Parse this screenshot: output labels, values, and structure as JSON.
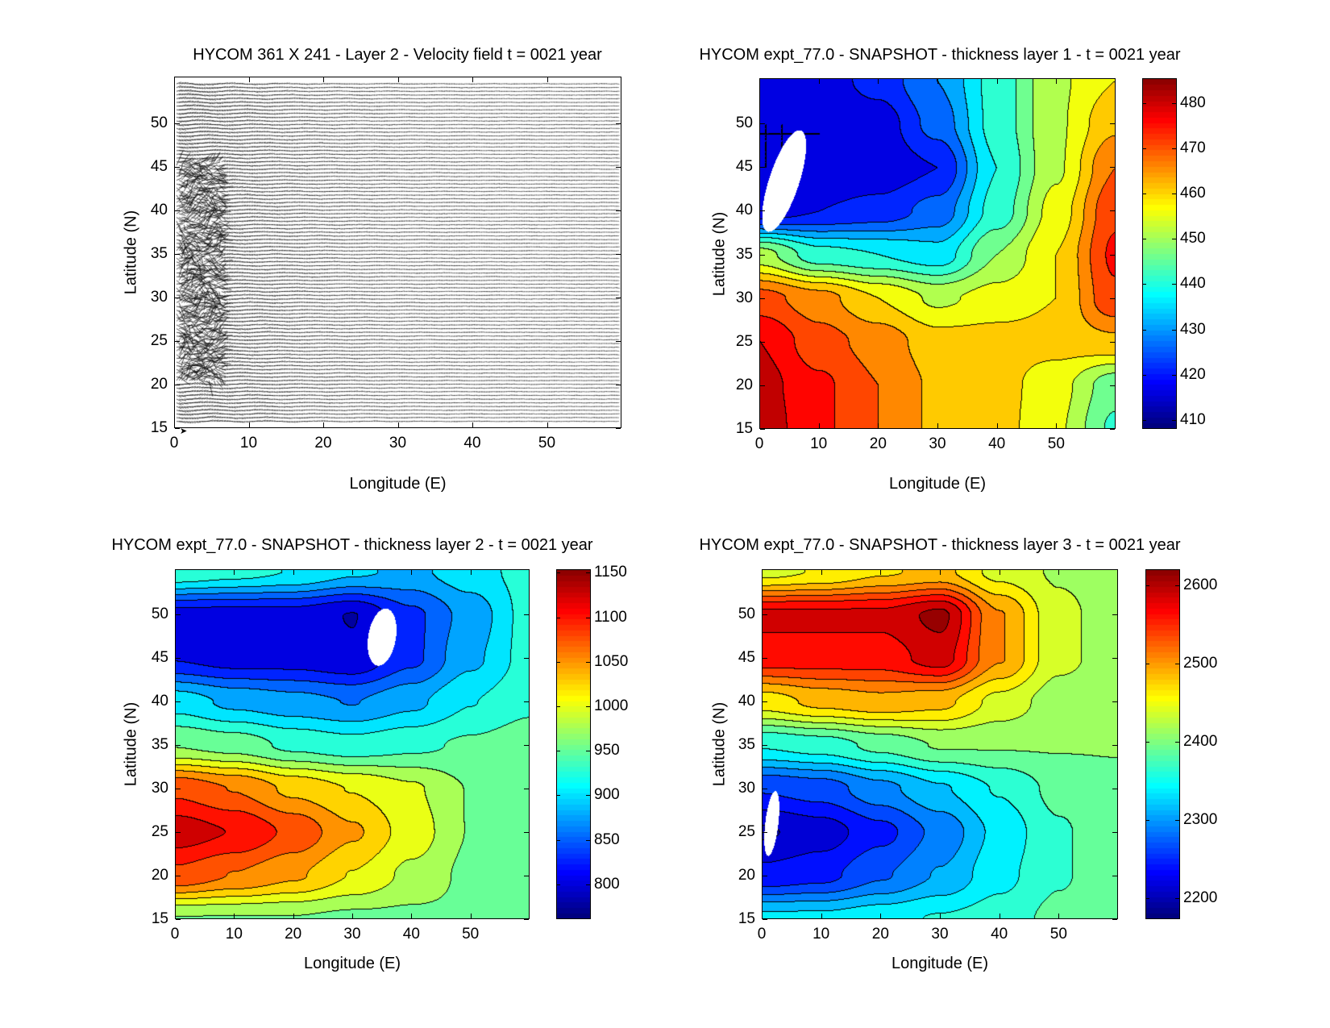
{
  "chart_data": [
    {
      "type": "quiver",
      "title": "HYCOM 361 X 241 - Layer 2 - Velocity field  t = 0021 year",
      "xlabel": "Longitude (E)",
      "ylabel": "Latitude (N)",
      "xlim": [
        0,
        60
      ],
      "ylim": [
        15,
        55.4
      ],
      "xticks": [
        "0",
        "10",
        "20",
        "30",
        "40",
        "50"
      ],
      "yticks": [
        "15",
        "20",
        "25",
        "30",
        "35",
        "40",
        "45",
        "50"
      ],
      "grid_size": "361 X 241"
    },
    {
      "type": "heatmap",
      "subtype": "filled-contour",
      "title": "HYCOM expt_77.0 - SNAPSHOT - thickness layer 1 - t = 0021 year",
      "xlabel": "Longitude (E)",
      "ylabel": "Latitude (N)",
      "xlim": [
        0,
        60
      ],
      "ylim": [
        15,
        55.2
      ],
      "xticks": [
        "0",
        "10",
        "20",
        "30",
        "40",
        "50"
      ],
      "yticks": [
        "15",
        "20",
        "25",
        "30",
        "35",
        "40",
        "45",
        "50"
      ],
      "colorbar": {
        "range": [
          408,
          485.5
        ],
        "ticks": [
          "410",
          "420",
          "430",
          "440",
          "450",
          "460",
          "470",
          "480"
        ],
        "colormap": "jet"
      },
      "contour_step": 5,
      "lon": [
        0,
        10,
        20,
        30,
        40,
        50,
        60
      ],
      "lat": [
        55,
        50,
        45,
        40,
        35,
        30,
        25,
        20,
        15
      ],
      "values": [
        [
          415,
          415,
          420,
          428,
          440,
          452,
          458
        ],
        [
          413,
          413,
          415,
          425,
          440,
          452,
          462
        ],
        [
          413,
          413,
          414,
          418,
          438,
          452,
          468
        ],
        [
          415,
          418,
          420,
          425,
          440,
          455,
          472
        ],
        [
          450,
          440,
          438,
          435,
          448,
          458,
          474
        ],
        [
          470,
          465,
          458,
          452,
          455,
          458,
          472
        ],
        [
          478,
          470,
          466,
          460,
          460,
          460,
          462
        ],
        [
          480,
          474,
          468,
          462,
          460,
          455,
          445
        ],
        [
          481,
          474,
          468,
          462,
          460,
          454,
          442
        ]
      ],
      "masked_region": {
        "lon": 4,
        "lat": 43.5,
        "half_lon": 2.4,
        "half_lat": 6.5,
        "tilt_deg": 28
      }
    },
    {
      "type": "heatmap",
      "subtype": "filled-contour",
      "title": "HYCOM expt_77.0 - SNAPSHOT - thickness layer 2 - t = 0021 year",
      "xlabel": "Longitude (E)",
      "ylabel": "Latitude (N)",
      "xlim": [
        0,
        60
      ],
      "ylim": [
        15,
        55.2
      ],
      "xticks": [
        "0",
        "10",
        "20",
        "30",
        "40",
        "50"
      ],
      "yticks": [
        "15",
        "20",
        "25",
        "30",
        "35",
        "40",
        "45",
        "50"
      ],
      "colorbar": {
        "range": [
          761,
          1154
        ],
        "ticks": [
          "800",
          "850",
          "900",
          "950",
          "1000",
          "1050",
          "1100",
          "1150"
        ],
        "colormap": "jet"
      },
      "contour_step": 25,
      "lon": [
        0,
        10,
        20,
        30,
        40,
        50,
        60
      ],
      "lat": [
        55,
        50,
        45,
        40,
        35,
        30,
        25,
        20,
        15
      ],
      "values": [
        [
          930,
          920,
          910,
          890,
          880,
          900,
          920
        ],
        [
          800,
          800,
          800,
          785,
          830,
          870,
          920
        ],
        [
          810,
          800,
          800,
          790,
          830,
          880,
          920
        ],
        [
          900,
          880,
          870,
          860,
          880,
          910,
          930
        ],
        [
          960,
          950,
          930,
          920,
          930,
          940,
          950
        ],
        [
          1080,
          1060,
          1030,
          1010,
          990,
          960,
          950
        ],
        [
          1125,
          1110,
          1080,
          1040,
          1000,
          960,
          950
        ],
        [
          1080,
          1060,
          1040,
          1010,
          980,
          955,
          950
        ],
        [
          960,
          960,
          960,
          955,
          955,
          955,
          955
        ]
      ],
      "masked_region": {
        "lon": 35,
        "lat": 47.5,
        "half_lon": 2.3,
        "half_lat": 3.4,
        "tilt_deg": 20
      }
    },
    {
      "type": "heatmap",
      "subtype": "filled-contour",
      "title": "HYCOM expt_77.0 - SNAPSHOT - thickness layer 3 - t = 0021 year",
      "xlabel": "Longitude (E)",
      "ylabel": "Latitude (N)",
      "xlim": [
        0,
        60
      ],
      "ylim": [
        15,
        55.2
      ],
      "xticks": [
        "0",
        "10",
        "20",
        "30",
        "40",
        "50"
      ],
      "yticks": [
        "15",
        "20",
        "25",
        "30",
        "35",
        "40",
        "45",
        "50"
      ],
      "colorbar": {
        "range": [
          2173,
          2621
        ],
        "ticks": [
          "2200",
          "2300",
          "2400",
          "2500",
          "2600"
        ],
        "colormap": "jet"
      },
      "contour_step": 25,
      "lon": [
        0,
        10,
        20,
        30,
        40,
        50,
        60
      ],
      "lat": [
        55,
        50,
        45,
        40,
        35,
        30,
        25,
        20,
        15
      ],
      "values": [
        [
          2440,
          2450,
          2470,
          2480,
          2440,
          2420,
          2410
        ],
        [
          2580,
          2580,
          2580,
          2605,
          2500,
          2430,
          2410
        ],
        [
          2560,
          2560,
          2560,
          2585,
          2500,
          2430,
          2410
        ],
        [
          2460,
          2480,
          2490,
          2480,
          2440,
          2410,
          2400
        ],
        [
          2350,
          2360,
          2380,
          2400,
          2400,
          2400,
          2400
        ],
        [
          2250,
          2260,
          2290,
          2320,
          2350,
          2380,
          2390
        ],
        [
          2195,
          2210,
          2240,
          2280,
          2330,
          2370,
          2390
        ],
        [
          2230,
          2240,
          2270,
          2300,
          2340,
          2370,
          2390
        ],
        [
          2330,
          2330,
          2340,
          2350,
          2360,
          2380,
          2390
        ]
      ],
      "masked_region": {
        "lon": 1.5,
        "lat": 26,
        "half_lon": 1.1,
        "half_lat": 3.8,
        "tilt_deg": 10
      }
    }
  ]
}
